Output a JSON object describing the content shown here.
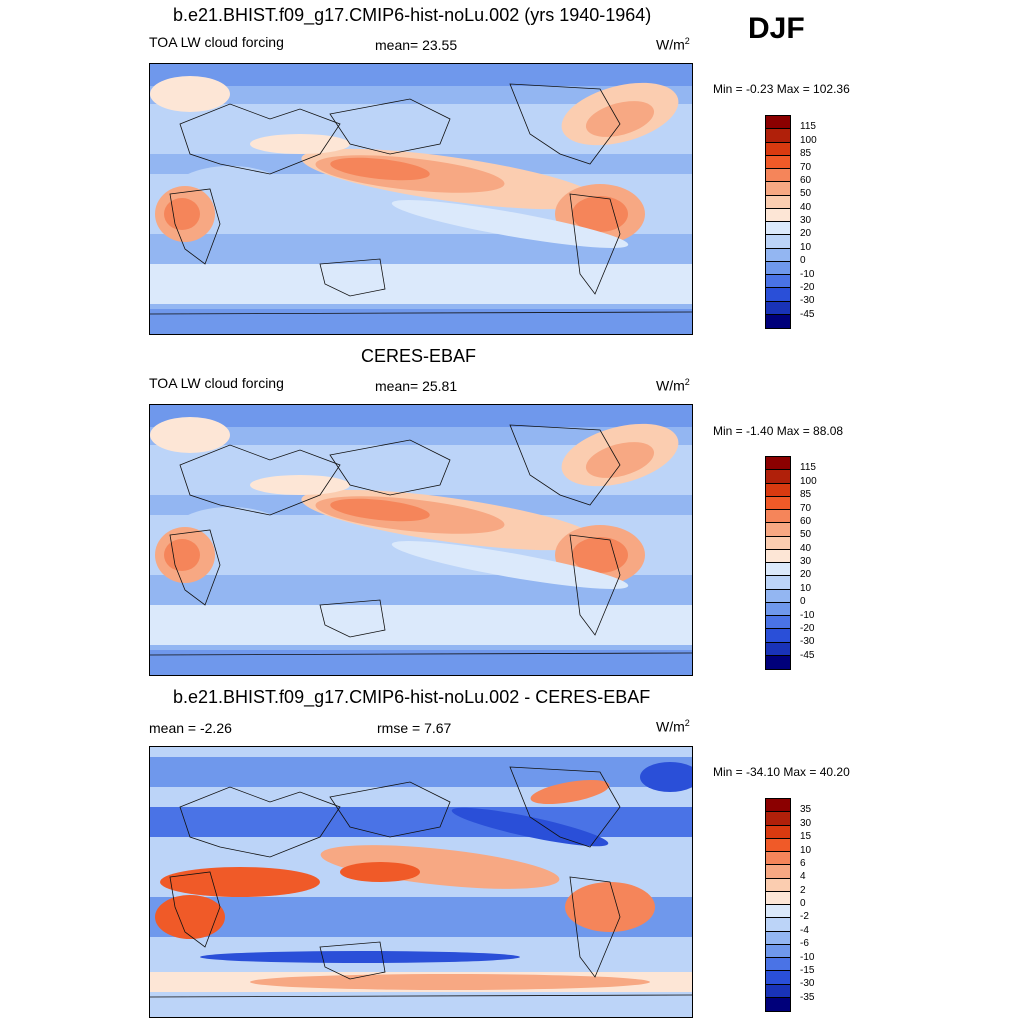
{
  "season": "DJF",
  "panels": [
    {
      "title": "b.e21.BHIST.f09_g17.CMIP6-hist-noLu.002 (yrs 1940-1964)",
      "left_label": "TOA LW cloud forcing",
      "center_label": "mean=  23.55",
      "units": "W/m",
      "units_sup": "2",
      "minmax": "Min =  -0.23 Max = 102.36",
      "field": 0.2
    },
    {
      "title": "CERES-EBAF",
      "left_label": "TOA LW cloud forcing",
      "center_label": "mean=  25.81",
      "units": "W/m",
      "units_sup": "2",
      "minmax": "Min =  -1.40 Max =  88.08",
      "field": 1.1
    },
    {
      "title": "b.e21.BHIST.f09_g17.CMIP6-hist-noLu.002 - CERES-EBAF",
      "left_label": "mean =  -2.26",
      "center_label": "rmse =   7.67",
      "units": "W/m",
      "units_sup": "2",
      "minmax": "Min = -34.10 Max =  40.20",
      "field": 2.3
    }
  ],
  "colorbar_abs": {
    "labels": [
      "115",
      "100",
      "85",
      "70",
      "60",
      "50",
      "40",
      "30",
      "20",
      "10",
      "0",
      "-10",
      "-20",
      "-30",
      "-45"
    ],
    "colors": [
      "#8b0000",
      "#b0200a",
      "#d93a10",
      "#f05a28",
      "#f5855a",
      "#f7a883",
      "#fbcdb0",
      "#fde6d6",
      "#dbe9fb",
      "#bcd4f8",
      "#93b6f2",
      "#6f98ec",
      "#4a73e6",
      "#2a4fd8",
      "#1933b8",
      "#00007a"
    ]
  },
  "colorbar_diff": {
    "labels": [
      "35",
      "30",
      "15",
      "10",
      "6",
      "4",
      "2",
      "0",
      "-2",
      "-4",
      "-6",
      "-10",
      "-15",
      "-30",
      "-35"
    ],
    "colors": [
      "#8b0000",
      "#b0200a",
      "#d93a10",
      "#f05a28",
      "#f5855a",
      "#f7a883",
      "#fbcdb0",
      "#fde6d6",
      "#dbe9fb",
      "#bcd4f8",
      "#93b6f2",
      "#6f98ec",
      "#4a73e6",
      "#2a4fd8",
      "#1933b8",
      "#00007a"
    ]
  }
}
